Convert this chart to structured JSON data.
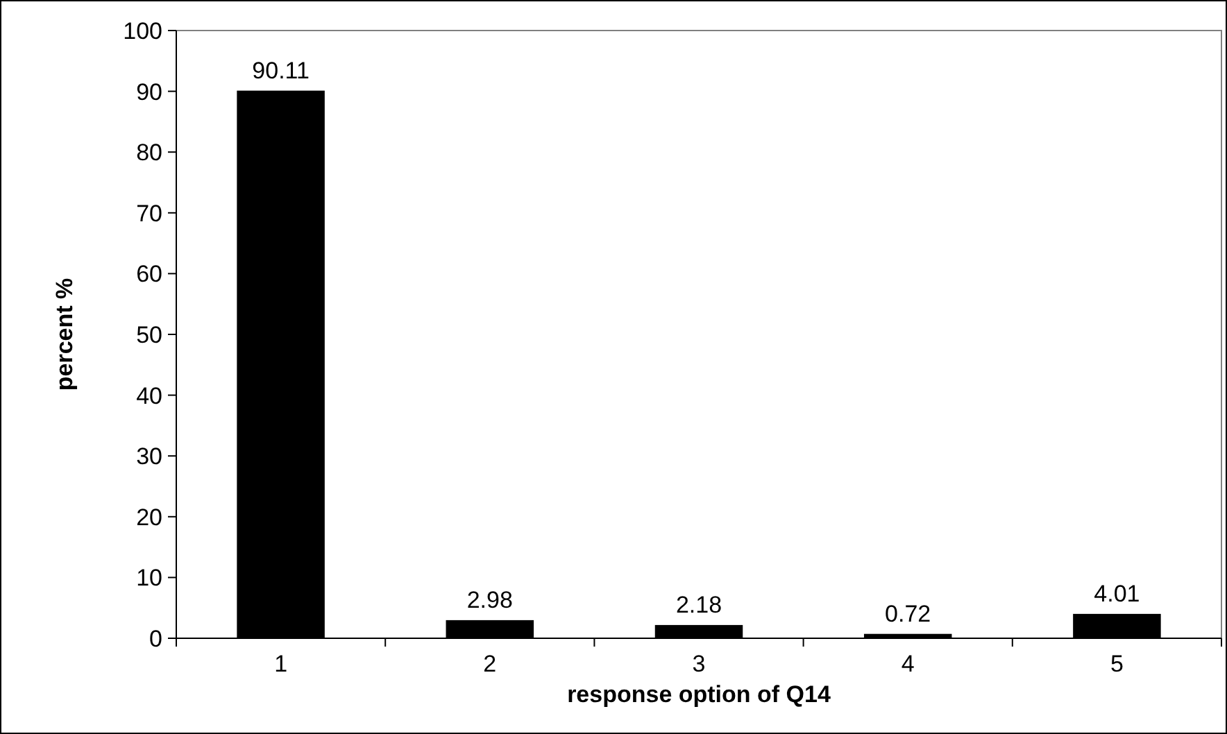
{
  "chart_data": {
    "type": "bar",
    "xlabel": "response option of Q14",
    "ylabel": "percent %",
    "categories": [
      "1",
      "2",
      "3",
      "4",
      "5"
    ],
    "values": [
      90.11,
      2.98,
      2.18,
      0.72,
      4.01
    ],
    "color": "#000000",
    "ylim": [
      0,
      100
    ],
    "yticks": [
      0,
      10,
      20,
      30,
      40,
      50,
      60,
      70,
      80,
      90,
      100
    ],
    "data_labels": true
  }
}
